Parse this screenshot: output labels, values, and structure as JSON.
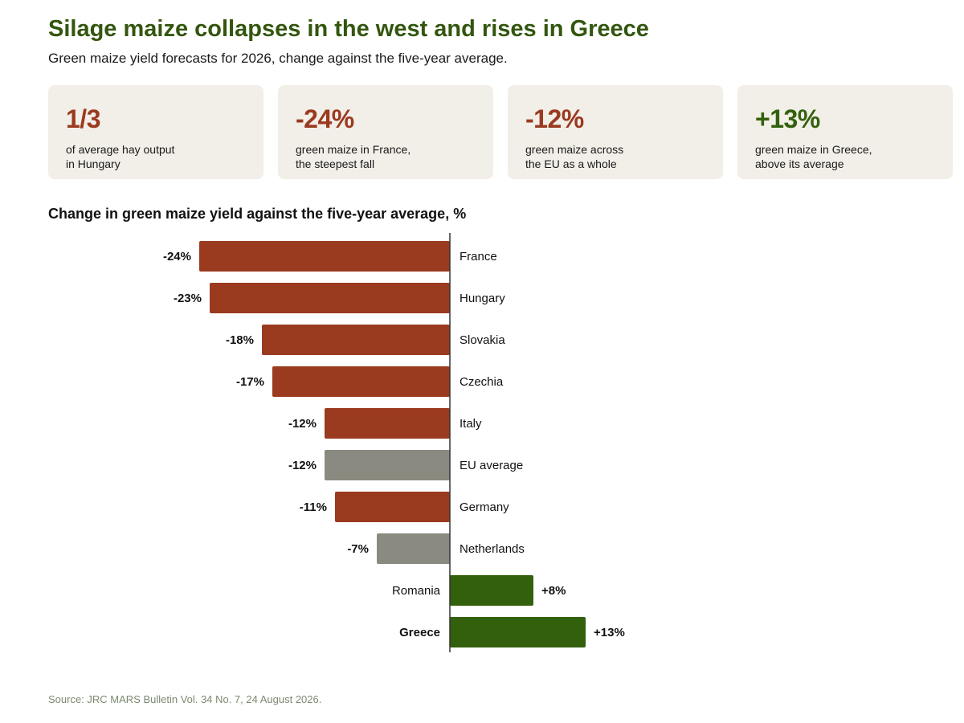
{
  "header": {
    "title": "Silage maize collapses in the west and rises in Greece",
    "subtitle": "Green maize yield forecasts for 2026, change against the five-year average."
  },
  "cards": [
    {
      "value": "1/3",
      "tone": "negative",
      "lines": [
        "of average hay output",
        "in Hungary"
      ]
    },
    {
      "value": "-24%",
      "tone": "negative",
      "lines": [
        "green maize in France,",
        "the steepest fall"
      ]
    },
    {
      "value": "-12%",
      "tone": "negative",
      "lines": [
        "green maize across",
        "the EU as a whole"
      ]
    },
    {
      "value": "+13%",
      "tone": "positive",
      "lines": [
        "green maize in Greece,",
        "above its average"
      ]
    }
  ],
  "colors": {
    "negative": "#9a3a1f",
    "positive": "#33600c",
    "neutral": "#8a8a80",
    "axis": "#333333"
  },
  "chart_data": {
    "type": "bar",
    "orientation": "horizontal",
    "title": "Change in green maize yield against the five-year average, %",
    "xlim": [
      -24,
      13
    ],
    "grid": false,
    "legend": "none",
    "categories": [
      "France",
      "Hungary",
      "Slovakia",
      "Czechia",
      "Italy",
      "EU average",
      "Germany",
      "Netherlands",
      "Romania",
      "Greece"
    ],
    "values": [
      -24,
      -23,
      -18,
      -17,
      -12,
      -12,
      -11,
      -7,
      8,
      13
    ],
    "data_labels": [
      "-24%",
      "-23%",
      "-18%",
      "-17%",
      "-12%",
      "-12%",
      "-11%",
      "-7%",
      "+8%",
      "+13%"
    ],
    "bar_colors": [
      "negative",
      "negative",
      "negative",
      "negative",
      "negative",
      "neutral",
      "negative",
      "neutral",
      "positive",
      "positive"
    ],
    "highlighted": [
      "Greece"
    ]
  },
  "footer": {
    "source": "Source: JRC MARS Bulletin Vol. 34 No. 7, 24 August 2026."
  }
}
